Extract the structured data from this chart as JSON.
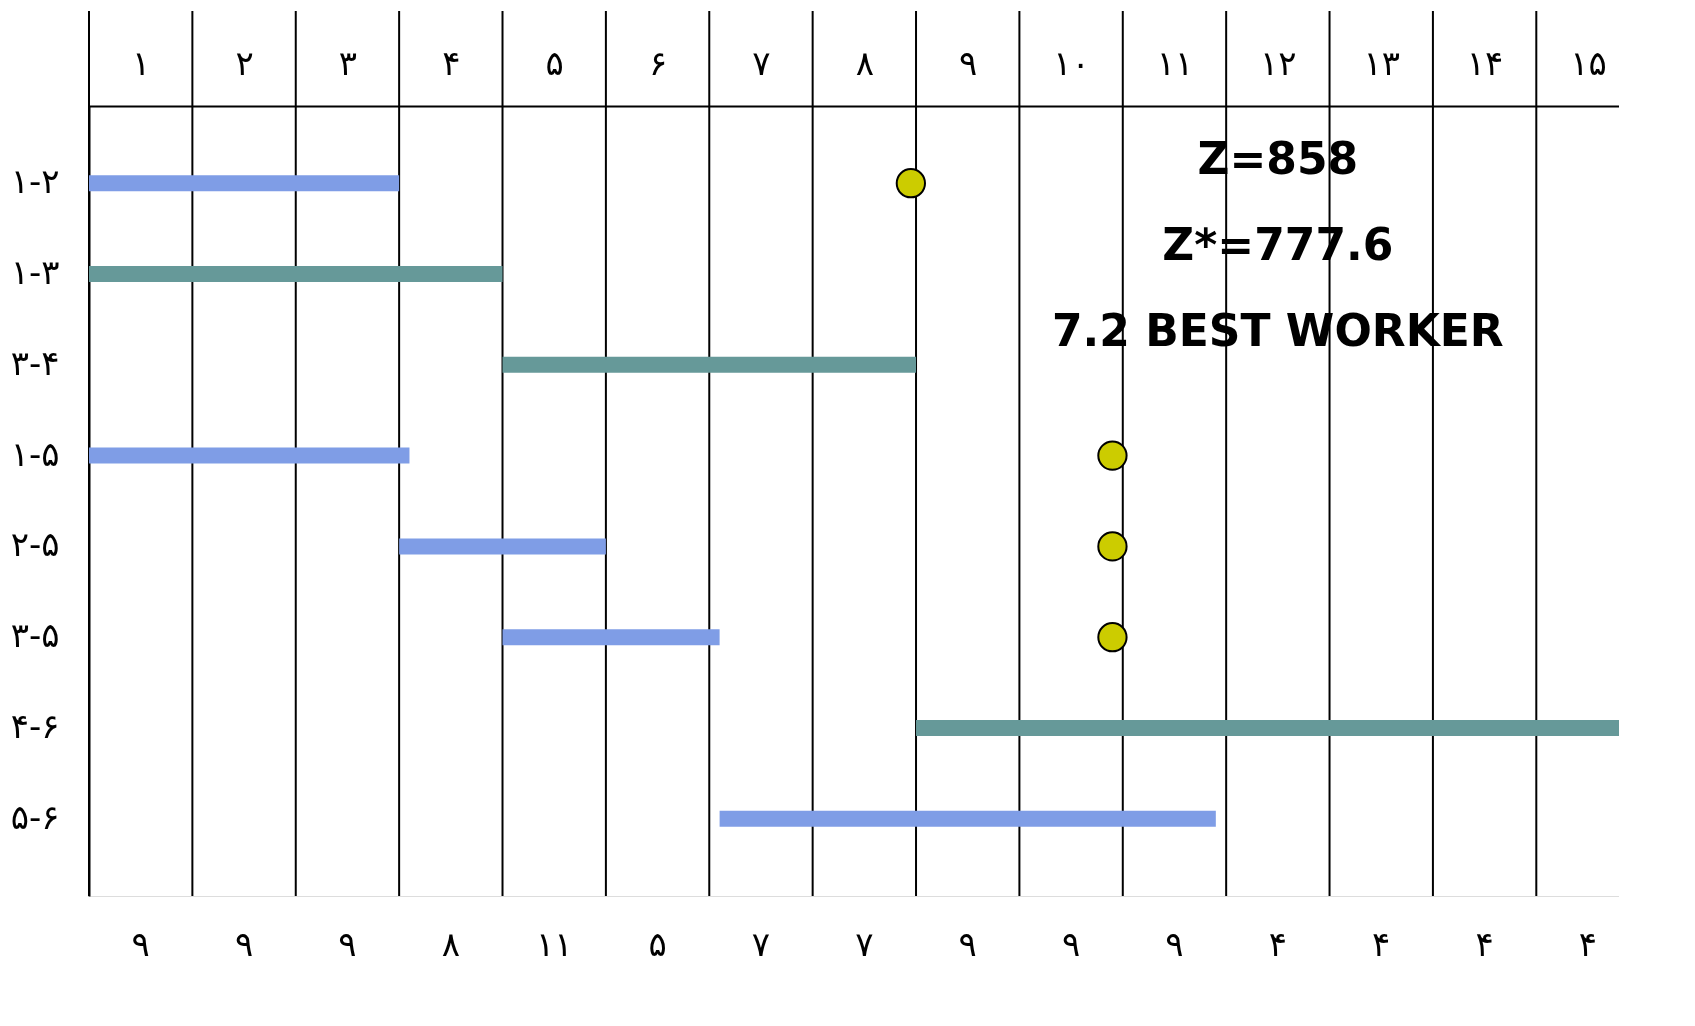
{
  "chart_data": {
    "type": "bar",
    "orientation": "horizontal",
    "categories": [
      "۱-۲",
      "۱-۳",
      "۳-۴",
      "۱-۵",
      "۲-۵",
      "۳-۵",
      "۴-۶",
      "۵-۶"
    ],
    "series": [
      {
        "color": "#7f9de6",
        "base": [
          0.5,
          null,
          null,
          0.5,
          3.5,
          4.5,
          null,
          6.6
        ],
        "values": [
          3,
          null,
          null,
          3.1,
          2,
          2.1,
          null,
          4.8
        ]
      },
      {
        "color": "#669999",
        "base": [
          null,
          0.5,
          4.5,
          null,
          null,
          null,
          8.5,
          null
        ],
        "values": [
          null,
          4,
          4,
          null,
          null,
          null,
          6.8,
          null
        ]
      },
      {
        "type": "scatter",
        "color": "#cccc00",
        "marker": "circle",
        "values": [
          8.45,
          null,
          null,
          10.4,
          10.4,
          10.4,
          null,
          null
        ]
      }
    ],
    "xlim": [
      0.5,
      15.3
    ],
    "xticks": [
      {
        "value": 1,
        "label": "١"
      },
      {
        "value": 2,
        "label": "٢"
      },
      {
        "value": 3,
        "label": "٣"
      },
      {
        "value": 4,
        "label": "۴"
      },
      {
        "value": 5,
        "label": "۵"
      },
      {
        "value": 6,
        "label": "۶"
      },
      {
        "value": 7,
        "label": "٧"
      },
      {
        "value": 8,
        "label": "٨"
      },
      {
        "value": 9,
        "label": "٩"
      },
      {
        "value": 10,
        "label": "١٠"
      },
      {
        "value": 11,
        "label": "١١"
      },
      {
        "value": 12,
        "label": "١٢"
      },
      {
        "value": 13,
        "label": "١٣"
      },
      {
        "value": 14,
        "label": "١۴"
      },
      {
        "value": 15,
        "label": "١۵"
      },
      {
        "value": 0.5,
        "label": null
      },
      {
        "value": 1.5,
        "label": null
      },
      {
        "value": 2.5,
        "label": null
      },
      {
        "value": 3.5,
        "label": null
      },
      {
        "value": 4.5,
        "label": null
      },
      {
        "value": 5.5,
        "label": null
      },
      {
        "value": 6.5,
        "label": null
      },
      {
        "value": 7.5,
        "label": null
      },
      {
        "value": 8.5,
        "label": null
      },
      {
        "value": 9.5,
        "label": null
      },
      {
        "value": 10.5,
        "label": null
      },
      {
        "value": 11.5,
        "label": null
      },
      {
        "value": 12.5,
        "label": null
      },
      {
        "value": 13.5,
        "label": null
      },
      {
        "value": 14.5,
        "label": null
      }
    ],
    "grid": "x",
    "annotations": [
      "Z=858",
      "Z*=777.6",
      "7.2 BEST WORKER",
      "٩",
      "٩",
      "٩",
      "٨",
      "١١",
      "۵",
      "٧",
      "٧",
      "٩",
      "٩",
      "٩",
      "۴",
      "۴",
      "۴",
      "۴"
    ]
  }
}
